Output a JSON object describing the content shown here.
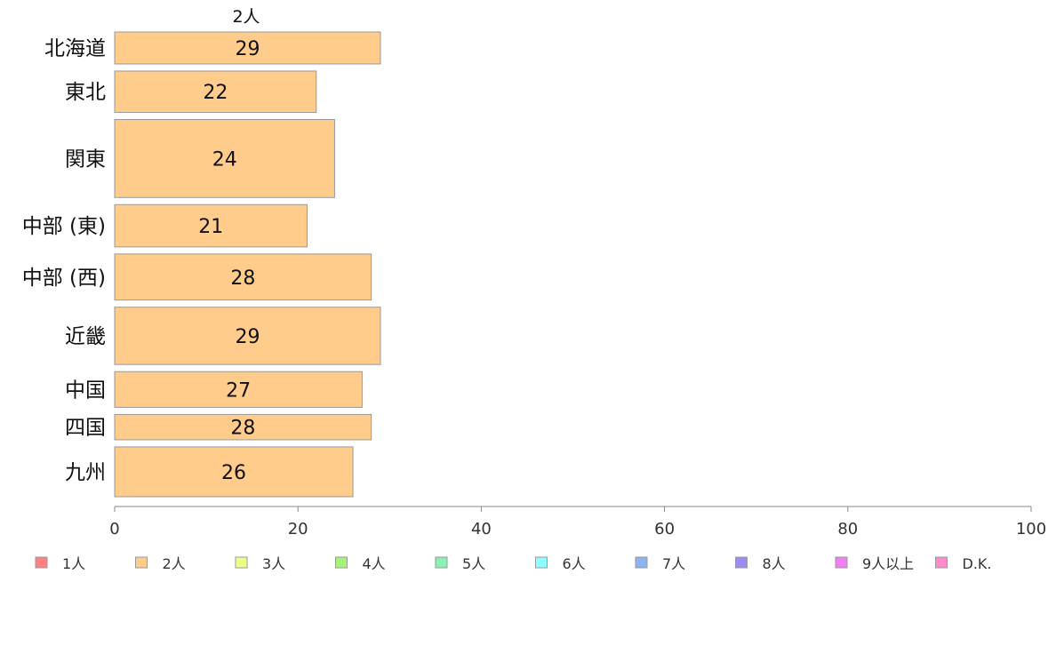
{
  "chart_data": {
    "type": "bar",
    "orientation": "horizontal",
    "series_title": "2人",
    "categories": [
      "北海道",
      "東北",
      "関東",
      "中部 (東)",
      "中部 (西)",
      "近畿",
      "中国",
      "四国",
      "九州"
    ],
    "values": [
      29,
      22,
      24,
      21,
      28,
      29,
      27,
      28,
      26
    ],
    "bar_weights": [
      0.68,
      0.88,
      1.66,
      0.9,
      0.98,
      1.22,
      0.76,
      0.54,
      1.06
    ],
    "bar_color": "#ffcc8c",
    "xlim": [
      0,
      100
    ],
    "xticks": [
      0,
      20,
      40,
      60,
      80,
      100
    ],
    "grid": false,
    "legend": {
      "position": "bottom",
      "items": [
        {
          "label": "1人",
          "color": "#ff8080"
        },
        {
          "label": "2人",
          "color": "#ffcc8c"
        },
        {
          "label": "3人",
          "color": "#eeff8c"
        },
        {
          "label": "4人",
          "color": "#a8f27c"
        },
        {
          "label": "5人",
          "color": "#8cf0b4"
        },
        {
          "label": "6人",
          "color": "#8cffff"
        },
        {
          "label": "7人",
          "color": "#8cb4f0"
        },
        {
          "label": "8人",
          "color": "#9a8cf0"
        },
        {
          "label": "9人以上",
          "color": "#f080f0"
        },
        {
          "label": "D.K.",
          "color": "#ff8cc8"
        }
      ]
    }
  }
}
